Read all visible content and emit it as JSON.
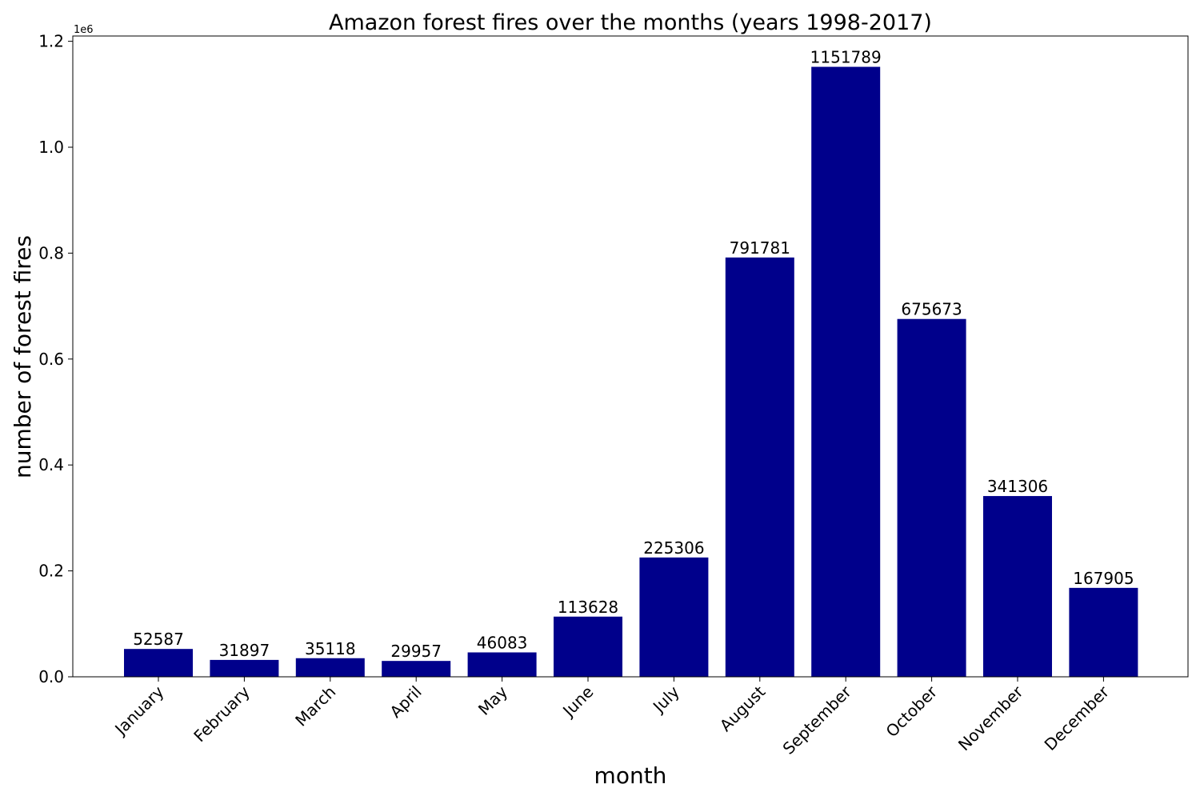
{
  "chart_data": {
    "type": "bar",
    "title": "Amazon forest fires over the months (years 1998-2017)",
    "xlabel": "month",
    "ylabel": "number of forest fires",
    "y_offset_label": "1e6",
    "categories": [
      "January",
      "February",
      "March",
      "April",
      "May",
      "June",
      "July",
      "August",
      "September",
      "October",
      "November",
      "December"
    ],
    "values": [
      52587,
      31897,
      35118,
      29957,
      46083,
      113628,
      225306,
      791781,
      1151789,
      675673,
      341306,
      167905
    ],
    "data_labels": [
      "52587",
      "31897",
      "35118",
      "29957",
      "46083",
      "113628",
      "225306",
      "791781",
      "1151789",
      "675673",
      "341306",
      "167905"
    ],
    "ylim": [
      0,
      1210000
    ],
    "y_ticks": [
      0,
      200000,
      400000,
      600000,
      800000,
      1000000,
      1200000
    ],
    "y_tick_labels": [
      "0.0",
      "0.2",
      "0.4",
      "0.6",
      "0.8",
      "1.0",
      "1.2"
    ],
    "bar_color": "#00008b",
    "grid": false,
    "legend": "none"
  }
}
